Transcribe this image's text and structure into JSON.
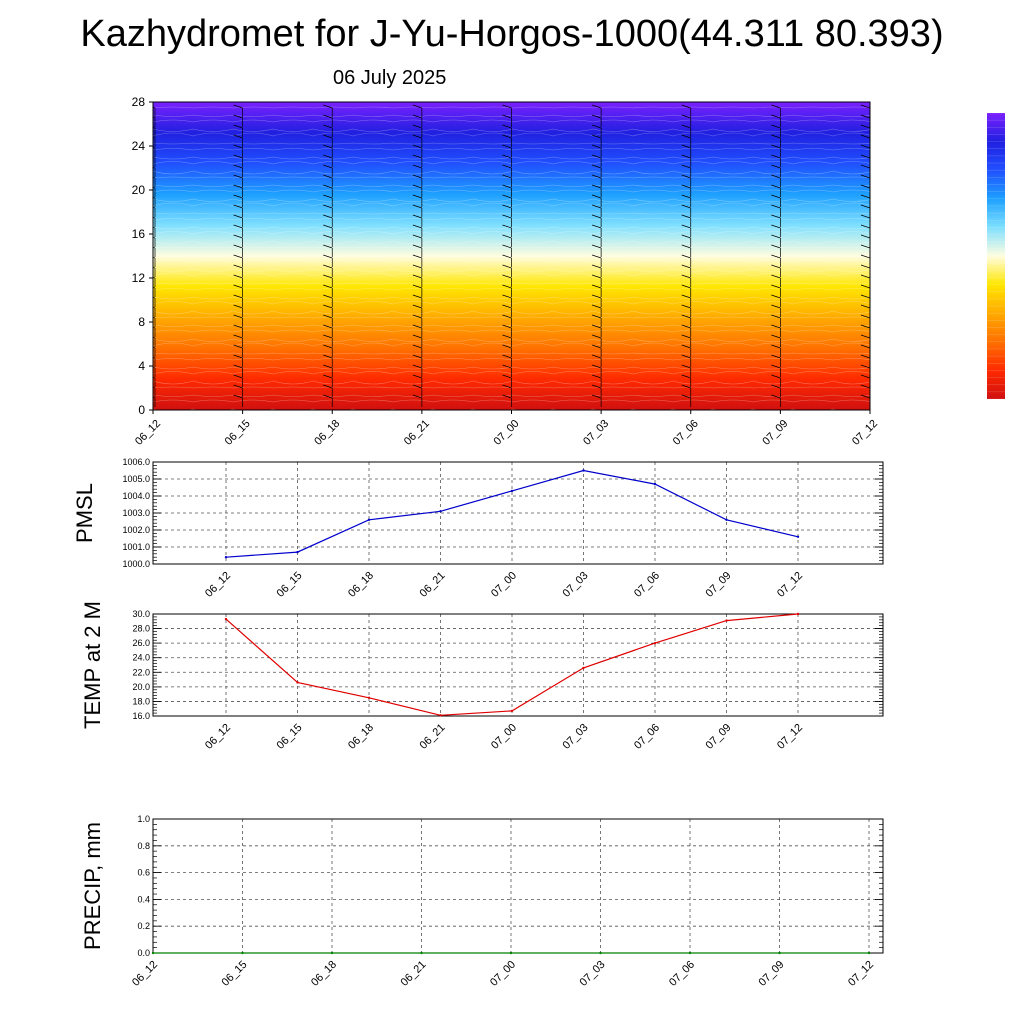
{
  "title": "Kazhydromet for J-Yu-Horgos-1000(44.311 80.393)",
  "date": "06 July 2025",
  "chart_data": [
    {
      "type": "heatmap",
      "name": "cross-section",
      "x_ticks": [
        "06_12",
        "06_15",
        "06_18",
        "06_21",
        "07_00",
        "07_03",
        "07_06",
        "07_09",
        "07_12"
      ],
      "y_ticks": [
        "0",
        "4",
        "8",
        "12",
        "16",
        "20",
        "24",
        "28"
      ],
      "ylim": [
        0,
        28
      ],
      "colorbar_stops": [
        "#d01010",
        "#ff2a00",
        "#ff7000",
        "#ffaa00",
        "#ffe600",
        "#fffde0",
        "#7fe0ff",
        "#1ea0ff",
        "#2050ff",
        "#2020e0",
        "#7a20ff"
      ],
      "grid": false
    },
    {
      "type": "line",
      "name": "pmsl",
      "ylabel": "PMSL",
      "categories": [
        "06_12",
        "06_15",
        "06_18",
        "06_21",
        "07_00",
        "07_03",
        "07_06",
        "07_09",
        "07_12"
      ],
      "values": [
        1000.4,
        1000.7,
        1002.6,
        1003.1,
        1004.3,
        1005.5,
        1004.7,
        1002.6,
        1001.6
      ],
      "ylim": [
        1000.0,
        1006.0
      ],
      "y_ticks": [
        "1000.0",
        "1001.0",
        "1002.0",
        "1003.0",
        "1004.0",
        "1005.0",
        "1006.0"
      ],
      "color": "#0000cc",
      "grid": true
    },
    {
      "type": "line",
      "name": "temp",
      "ylabel": "TEMP at 2 M",
      "categories": [
        "06_12",
        "06_15",
        "06_18",
        "06_21",
        "07_00",
        "07_03",
        "07_06",
        "07_09",
        "07_12"
      ],
      "values": [
        29.3,
        20.6,
        18.5,
        16.1,
        16.7,
        22.6,
        26.0,
        29.1,
        30.0
      ],
      "ylim": [
        16.0,
        30.0
      ],
      "y_ticks": [
        "16.0",
        "18.0",
        "20.0",
        "22.0",
        "24.0",
        "26.0",
        "28.0",
        "30.0"
      ],
      "color": "#e00000",
      "grid": true
    },
    {
      "type": "line",
      "name": "precip",
      "ylabel": "PRECIP, mm",
      "categories": [
        "06_12",
        "06_15",
        "06_18",
        "06_21",
        "07_00",
        "07_03",
        "07_06",
        "07_09",
        "07_12"
      ],
      "values": [
        0,
        0,
        0,
        0,
        0,
        0,
        0,
        0,
        0
      ],
      "ylim": [
        0.0,
        1.0
      ],
      "y_ticks": [
        "0.0",
        "0.2",
        "0.4",
        "0.6",
        "0.8",
        "1.0"
      ],
      "color": "#008000",
      "grid": true
    }
  ]
}
